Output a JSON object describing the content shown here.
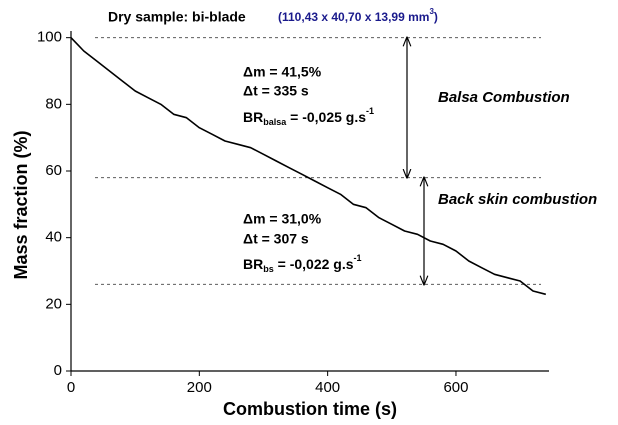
{
  "chart_data": {
    "type": "line",
    "title": "Dry sample: bi-blade",
    "subtitle": [
      "(110,43 x 40,70 x 13,99 mm",
      "3",
      ")"
    ],
    "x_label": "Combustion time (s)",
    "y_label": "Mass fraction  (%)",
    "xlim": [
      0,
      745
    ],
    "ylim": [
      0,
      102
    ],
    "xticks": [
      0,
      200,
      400,
      600
    ],
    "yticks": [
      0,
      20,
      40,
      60,
      80,
      100
    ],
    "x": [
      0,
      10,
      20,
      40,
      60,
      80,
      100,
      120,
      140,
      160,
      180,
      200,
      220,
      240,
      260,
      280,
      300,
      320,
      340,
      360,
      380,
      400,
      420,
      440,
      460,
      480,
      500,
      520,
      540,
      560,
      580,
      600,
      620,
      640,
      660,
      680,
      700,
      720,
      740
    ],
    "series": [
      {
        "name": "Mass fraction",
        "color": "#000000",
        "values": [
          100,
          98,
          96,
          93,
          90,
          87,
          84,
          82,
          80,
          77,
          76,
          73,
          71,
          69,
          68,
          67,
          65,
          63,
          61,
          59,
          57,
          55,
          53,
          50,
          49,
          46,
          44,
          42,
          41,
          39,
          38,
          36,
          33,
          31,
          29,
          28,
          27,
          24,
          23
        ]
      }
    ],
    "reference_lines": [
      100,
      58,
      26
    ],
    "annotations": [
      {
        "delta_m": "Δm = 41,5%",
        "delta_t": "Δt = 335 s",
        "br": [
          "BR",
          "balsa",
          " = -0,025 g.s",
          "-1"
        ],
        "label": "Balsa Combustion"
      },
      {
        "delta_m": "Δm = 31,0%",
        "delta_t": "Δt = 307 s",
        "br": [
          "BR",
          "bs",
          " = -0,022 g.s",
          "-1"
        ],
        "label": "Back skin combustion"
      }
    ]
  }
}
